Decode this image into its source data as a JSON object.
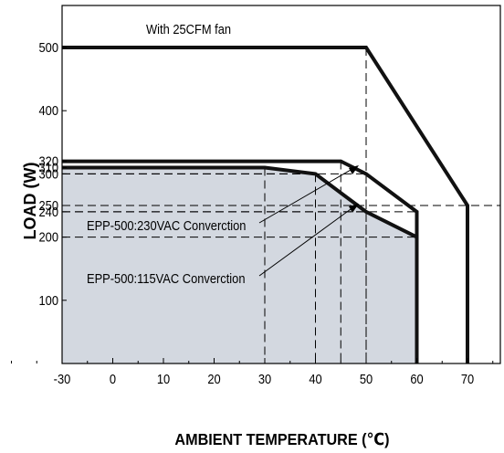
{
  "chart_data": {
    "type": "line",
    "xlabel": "AMBIENT TEMPERATURE (℃)",
    "ylabel": "LOAD (W)",
    "xlim": [
      -30,
      85
    ],
    "ylim": [
      0,
      580
    ],
    "grid": false,
    "x_ticks": [
      -30,
      0,
      10,
      20,
      30,
      40,
      50,
      60,
      70
    ],
    "x_tick_labels": [
      "-30",
      "0",
      "10",
      "20",
      "30",
      "40",
      "50",
      "60",
      "70"
    ],
    "y_ticks": [
      100,
      200,
      240,
      250,
      300,
      310,
      320,
      400,
      500
    ],
    "y_tick_labels": [
      "100",
      "200",
      "240",
      "250",
      "300",
      "310",
      "320",
      "400",
      "500"
    ],
    "series": [
      {
        "name": "With 25CFM fan",
        "x": [
          -30,
          50,
          70,
          70
        ],
        "y": [
          500,
          500,
          250,
          0
        ]
      },
      {
        "name": "EPP-500:230VAC Converction",
        "x": [
          -30,
          45,
          50,
          60,
          60
        ],
        "y": [
          320,
          320,
          300,
          240,
          0
        ]
      },
      {
        "name": "EPP-500:115VAC Converction",
        "x": [
          -30,
          30,
          40,
          50,
          60,
          60
        ],
        "y": [
          310,
          310,
          300,
          240,
          200,
          0
        ]
      }
    ],
    "annotations": [
      "With 25CFM fan",
      "EPP-500:230VAC Converction",
      "EPP-500:115VAC Converction"
    ],
    "colors": {
      "shaded_area": "#d3d8e0",
      "lines": "#111111"
    }
  }
}
